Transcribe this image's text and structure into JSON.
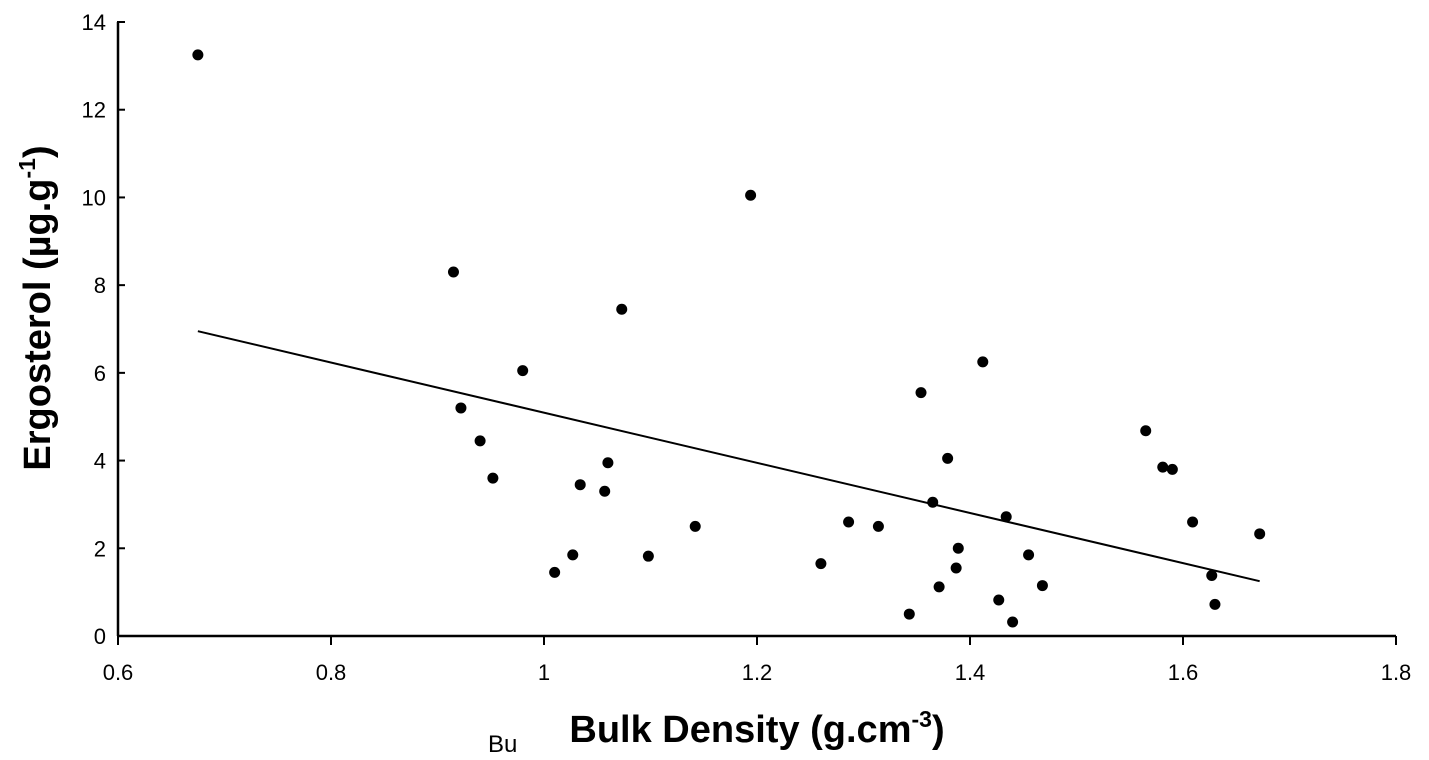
{
  "chart_data": {
    "type": "scatter",
    "title": "",
    "xlabel": "Bulk Density (g.cm",
    "xlabel_sup": "-3",
    "xlabel_tail": ")",
    "ylabel": "Ergosterol (µg.g",
    "ylabel_sup": "-1",
    "ylabel_tail": ")",
    "stray_text": "Bu",
    "xlim": [
      0.6,
      1.8
    ],
    "ylim": [
      0,
      14
    ],
    "x_ticks": [
      "0.6",
      "0.8",
      "1",
      "1.2",
      "1.4",
      "1.6",
      "1.8"
    ],
    "y_ticks": [
      "0",
      "2",
      "4",
      "6",
      "8",
      "10",
      "12",
      "14"
    ],
    "grid": false,
    "point_color": "#000000",
    "line_color": "#000000",
    "points": [
      {
        "x": 0.675,
        "y": 13.25
      },
      {
        "x": 0.915,
        "y": 8.3
      },
      {
        "x": 0.922,
        "y": 5.2
      },
      {
        "x": 0.94,
        "y": 4.45
      },
      {
        "x": 0.952,
        "y": 3.6
      },
      {
        "x": 0.98,
        "y": 6.05
      },
      {
        "x": 1.01,
        "y": 1.45
      },
      {
        "x": 1.027,
        "y": 1.85
      },
      {
        "x": 1.034,
        "y": 3.45
      },
      {
        "x": 1.057,
        "y": 3.3
      },
      {
        "x": 1.06,
        "y": 3.95
      },
      {
        "x": 1.073,
        "y": 7.45
      },
      {
        "x": 1.098,
        "y": 1.82
      },
      {
        "x": 1.142,
        "y": 2.5
      },
      {
        "x": 1.194,
        "y": 10.05
      },
      {
        "x": 1.26,
        "y": 1.65
      },
      {
        "x": 1.286,
        "y": 2.6
      },
      {
        "x": 1.314,
        "y": 2.5
      },
      {
        "x": 1.343,
        "y": 0.5
      },
      {
        "x": 1.354,
        "y": 5.55
      },
      {
        "x": 1.365,
        "y": 3.05
      },
      {
        "x": 1.371,
        "y": 1.12
      },
      {
        "x": 1.379,
        "y": 4.05
      },
      {
        "x": 1.387,
        "y": 1.55
      },
      {
        "x": 1.389,
        "y": 2.0
      },
      {
        "x": 1.412,
        "y": 6.25
      },
      {
        "x": 1.427,
        "y": 0.82
      },
      {
        "x": 1.434,
        "y": 2.72
      },
      {
        "x": 1.44,
        "y": 0.32
      },
      {
        "x": 1.455,
        "y": 1.85
      },
      {
        "x": 1.468,
        "y": 1.15
      },
      {
        "x": 1.565,
        "y": 4.68
      },
      {
        "x": 1.581,
        "y": 3.85
      },
      {
        "x": 1.59,
        "y": 3.8
      },
      {
        "x": 1.609,
        "y": 2.6
      },
      {
        "x": 1.627,
        "y": 1.38
      },
      {
        "x": 1.63,
        "y": 0.72
      },
      {
        "x": 1.672,
        "y": 2.33
      }
    ],
    "trendline": {
      "x": [
        0.675,
        1.672
      ],
      "y": [
        6.95,
        1.25
      ]
    }
  }
}
